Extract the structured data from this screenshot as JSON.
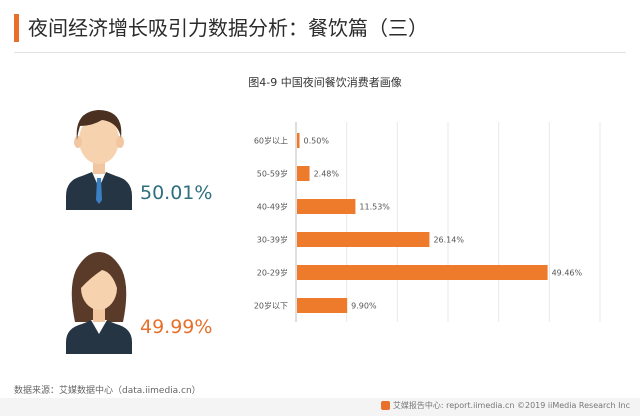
{
  "page": {
    "title": "夜间经济增长吸引力数据分析：餐饮篇（三）"
  },
  "figures": {
    "male": {
      "percent": "50.01%",
      "icon": "male-avatar-icon",
      "color": "#2e6f7e"
    },
    "female": {
      "percent": "49.99%",
      "icon": "female-avatar-icon",
      "color": "#e8702a"
    }
  },
  "chart_data": {
    "type": "bar",
    "orientation": "horizontal",
    "title": "图4-9 中国夜间餐饮消费者画像",
    "categories": [
      "60岁以上",
      "50-59岁",
      "40-49岁",
      "30-39岁",
      "20-29岁",
      "20岁以下"
    ],
    "values": [
      0.5,
      2.48,
      11.53,
      26.14,
      49.46,
      9.9
    ],
    "value_labels": [
      "0.50%",
      "2.48%",
      "11.53%",
      "26.14%",
      "49.46%",
      "9.90%"
    ],
    "xlim": [
      0,
      60
    ],
    "grid": true,
    "legend": "none",
    "bar_color": "#ee7a2c",
    "xlabel": "",
    "ylabel": ""
  },
  "source": {
    "text": "数据来源：艾媒数据中心（data.iimedia.cn）"
  },
  "footer": {
    "text": "艾媒报告中心: report.iimedia.cn ©2019 iiMedia Research Inc"
  }
}
